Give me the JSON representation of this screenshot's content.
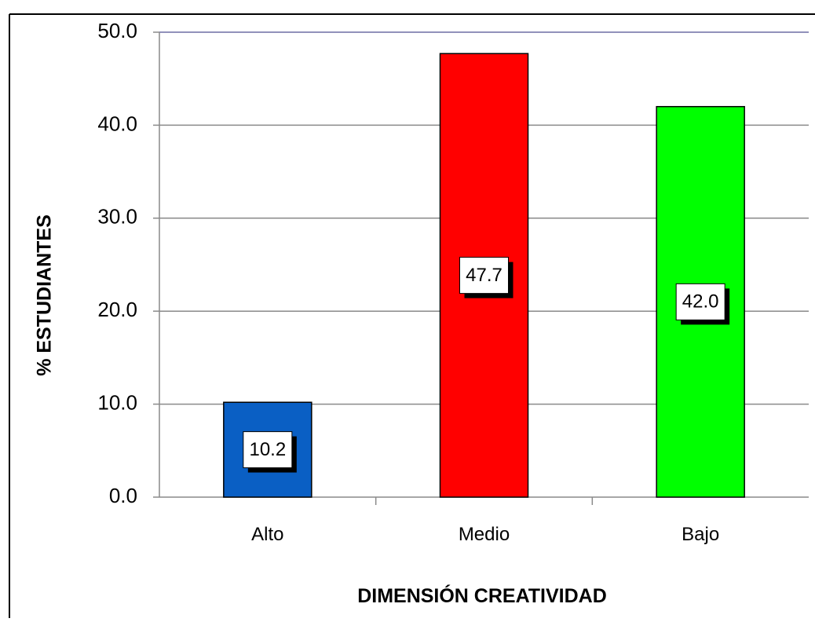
{
  "chart_data": {
    "type": "bar",
    "categories": [
      "Alto",
      "Medio",
      "Bajo"
    ],
    "values": [
      10.2,
      47.7,
      42.0
    ],
    "value_labels": [
      "10.2",
      "47.7",
      "42.0"
    ],
    "colors": [
      "#0a5fc4",
      "#ff0000",
      "#00ff00"
    ],
    "xlabel": "DIMENSIÓN CREATIVIDAD",
    "ylabel": "% ESTUDIANTES",
    "ylim": [
      0,
      50
    ],
    "yticks": [
      "0.0",
      "10.0",
      "20.0",
      "30.0",
      "40.0",
      "50.0"
    ],
    "grid": true,
    "legend": "none"
  }
}
